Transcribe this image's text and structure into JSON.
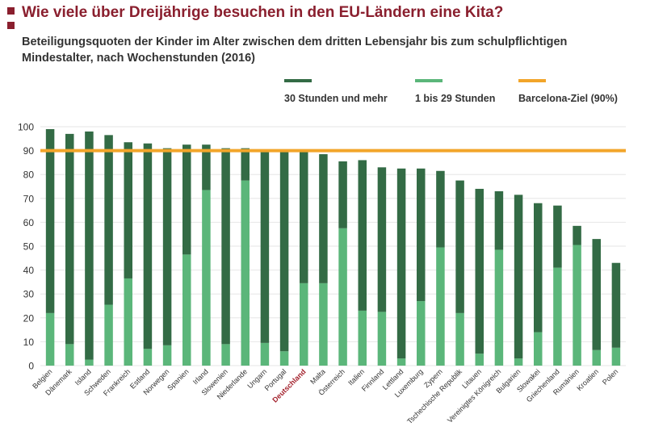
{
  "header": {
    "title": "Wie viele über Dreijährige besuchen in den EU-Ländern eine Kita?",
    "subtitle": "Beteiligungsquoten der Kinder im Alter zwischen dem dritten Lebensjahr bis zum schulpflichtigen Mindestalter, nach Wochenstunden (2016)"
  },
  "legend": {
    "full": "30 Stunden und mehr",
    "part": "1 bis 29 Stunden",
    "target": "Barcelona-Ziel (90%)"
  },
  "colors": {
    "full": "#336b45",
    "part": "#5bb67a",
    "target": "#f2a52a",
    "highlight": "#a3212c",
    "accent": "#8a1f2e"
  },
  "chart_data": {
    "type": "bar",
    "stacked": true,
    "ylim": [
      0,
      100
    ],
    "yticks": [
      0,
      10,
      20,
      30,
      40,
      50,
      60,
      70,
      80,
      90,
      100
    ],
    "target_value": 90,
    "highlight_category": "Deutschland",
    "categories": [
      "Belgien",
      "Dänemark",
      "Island",
      "Schweden",
      "Frankreich",
      "Estland",
      "Norwegen",
      "Spanien",
      "Irland",
      "Slowenien",
      "Niederlande",
      "Ungarn",
      "Portugal",
      "Deutschland",
      "Malta",
      "Österreich",
      "Italien",
      "Finnland",
      "Lettland",
      "Luxemburg",
      "Zypern",
      "Tschechische Republik",
      "Litauen",
      "Vereinigtes Königreich",
      "Bulgarien",
      "Slowakei",
      "Griechenland",
      "Rumänien",
      "Kroatien",
      "Polen"
    ],
    "series": [
      {
        "name": "1 bis 29 Stunden",
        "values": [
          22,
          9,
          2.5,
          25.5,
          36.5,
          7,
          8.5,
          46.5,
          73.5,
          9,
          77.5,
          9.5,
          6,
          34.5,
          34.5,
          57.5,
          23,
          22.5,
          3,
          27,
          49.5,
          22,
          5,
          48.5,
          3,
          14,
          41,
          50.5,
          6.5,
          7.5
        ]
      },
      {
        "name": "30 Stunden und mehr",
        "values": [
          77,
          88,
          95.5,
          71,
          57,
          86,
          82.5,
          46,
          19,
          82,
          13.5,
          80,
          84,
          55.5,
          54,
          28,
          63,
          60.5,
          79.5,
          55.5,
          32,
          55.5,
          69,
          24.5,
          68.5,
          54,
          26,
          8,
          46.5,
          35.5
        ]
      }
    ]
  }
}
